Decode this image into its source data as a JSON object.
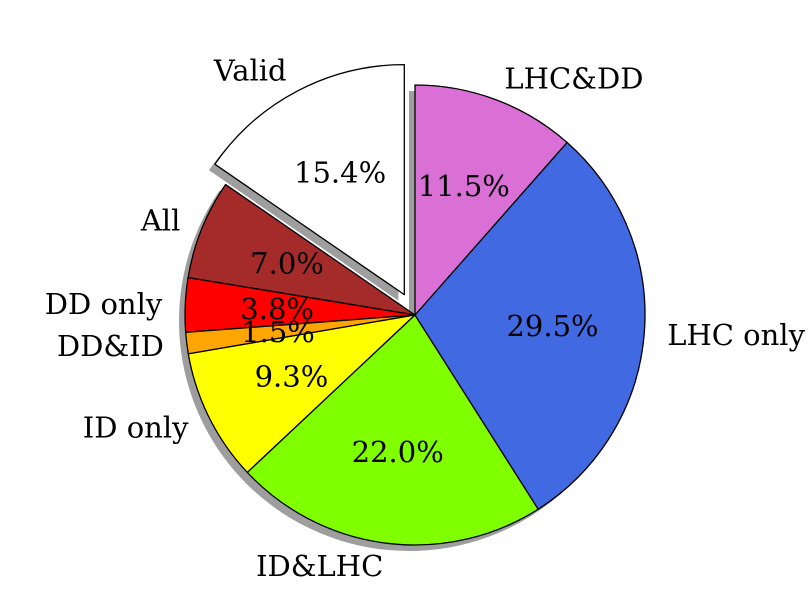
{
  "chart_data": {
    "type": "pie",
    "title": "",
    "start_angle_deg": 90,
    "direction": "counterclockwise",
    "shadow": true,
    "slices": [
      {
        "label": "Valid",
        "value": 15.4,
        "pct_label": "15.4%",
        "color": "#ffffff",
        "explode": true
      },
      {
        "label": "All",
        "value": 7.0,
        "pct_label": "7.0%",
        "color": "#a52a2a",
        "explode": false
      },
      {
        "label": "DD only",
        "value": 3.8,
        "pct_label": "3.8%",
        "color": "#ff0000",
        "explode": false
      },
      {
        "label": "DD&ID",
        "value": 1.5,
        "pct_label": "1.5%",
        "color": "#ffa500",
        "explode": false
      },
      {
        "label": "ID only",
        "value": 9.3,
        "pct_label": "9.3%",
        "color": "#ffff00",
        "explode": false
      },
      {
        "label": "ID&LHC",
        "value": 22.0,
        "pct_label": "22.0%",
        "color": "#7fff00",
        "explode": false
      },
      {
        "label": "LHC only",
        "value": 29.5,
        "pct_label": "29.5%",
        "color": "#4169e1",
        "explode": false
      },
      {
        "label": "LHC&DD",
        "value": 11.5,
        "pct_label": "11.5%",
        "color": "#da70d6",
        "explode": false
      }
    ]
  }
}
